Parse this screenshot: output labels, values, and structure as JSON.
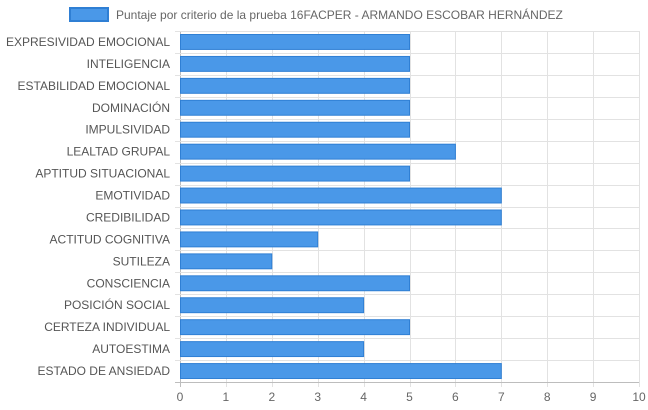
{
  "chart_data": {
    "type": "bar",
    "orientation": "horizontal",
    "title": "",
    "xlabel": "",
    "ylabel": "",
    "xlim": [
      0,
      10
    ],
    "x_ticks": [
      0,
      1,
      2,
      3,
      4,
      5,
      6,
      7,
      8,
      9,
      10
    ],
    "grid": true,
    "legend_position": "top-center",
    "categories": [
      "EXPRESIVIDAD EMOCIONAL",
      "INTELIGENCIA",
      "ESTABILIDAD EMOCIONAL",
      "DOMINACIÓN",
      "IMPULSIVIDAD",
      "LEALTAD GRUPAL",
      "APTITUD SITUACIONAL",
      "EMOTIVIDAD",
      "CREDIBILIDAD",
      "ACTITUD COGNITIVA",
      "SUTILEZA",
      "CONSCIENCIA",
      "POSICIÓN SOCIAL",
      "CERTEZA INDIVIDUAL",
      "AUTOESTIMA",
      "ESTADO DE ANSIEDAD"
    ],
    "series": [
      {
        "name": "Puntaje por criterio de la prueba 16FACPER - ARMANDO ESCOBAR HERNÁNDEZ",
        "values": [
          5,
          5,
          5,
          5,
          5,
          6,
          5,
          7,
          7,
          3,
          2,
          5,
          4,
          5,
          4,
          7
        ],
        "color": "#4a98e8",
        "border_color": "#2f7fd4"
      }
    ]
  }
}
